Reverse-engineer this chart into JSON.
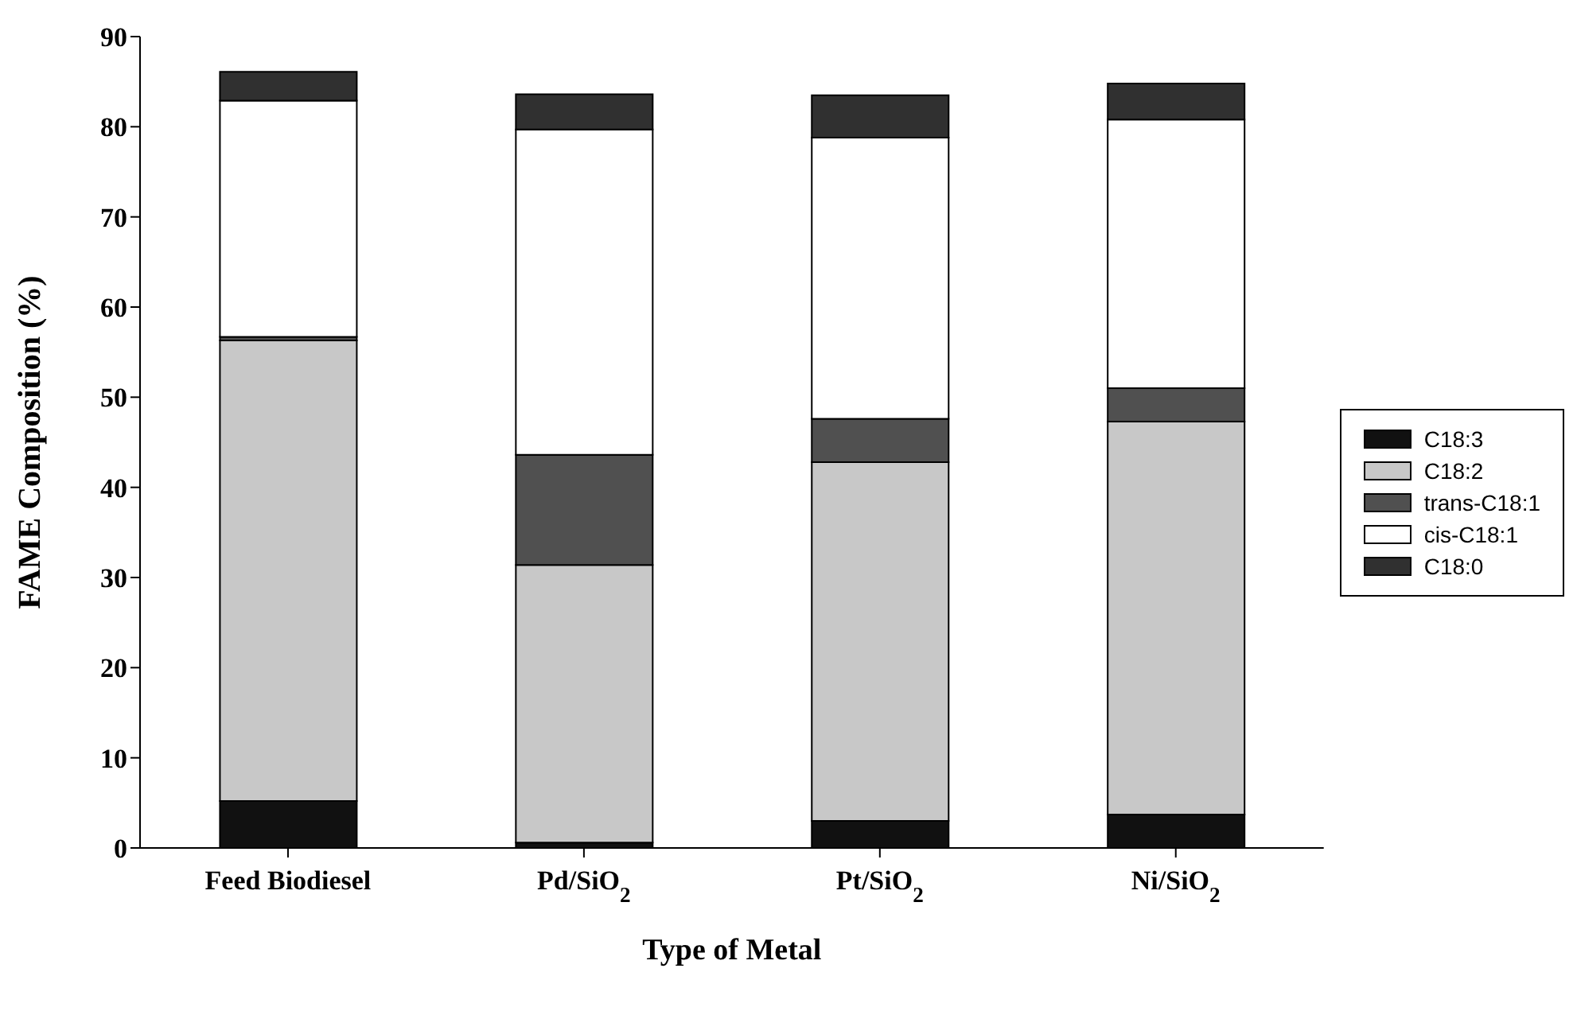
{
  "chart_data": {
    "type": "bar",
    "stacked": true,
    "xlabel": "Type of Metal",
    "ylabel": "FAME Composition (%)",
    "categories": [
      "Feed Biodiesel",
      "Pd/SiO$_{2}$",
      "Pt/SiO$_{2}$",
      "Ni/SiO$_{2}$"
    ],
    "series": [
      {
        "name": "C18:3",
        "color": "#111111",
        "values": [
          5.2,
          0.6,
          3.0,
          3.7
        ]
      },
      {
        "name": "C18:2",
        "color": "#c8c8c8",
        "values": [
          51.1,
          30.8,
          39.8,
          43.6
        ]
      },
      {
        "name": "trans-C18:1",
        "color": "#505050",
        "values": [
          0.4,
          12.2,
          4.8,
          3.7
        ]
      },
      {
        "name": "cis-C18:1",
        "color": "#ffffff",
        "values": [
          26.2,
          36.1,
          31.2,
          29.8
        ]
      },
      {
        "name": "C18:0",
        "color": "#303030",
        "values": [
          3.2,
          3.9,
          4.7,
          4.0
        ]
      }
    ],
    "ylim": [
      0,
      90
    ],
    "yticks": [
      0,
      10,
      20,
      30,
      40,
      50,
      60,
      70,
      80,
      90
    ],
    "legend": "right"
  }
}
